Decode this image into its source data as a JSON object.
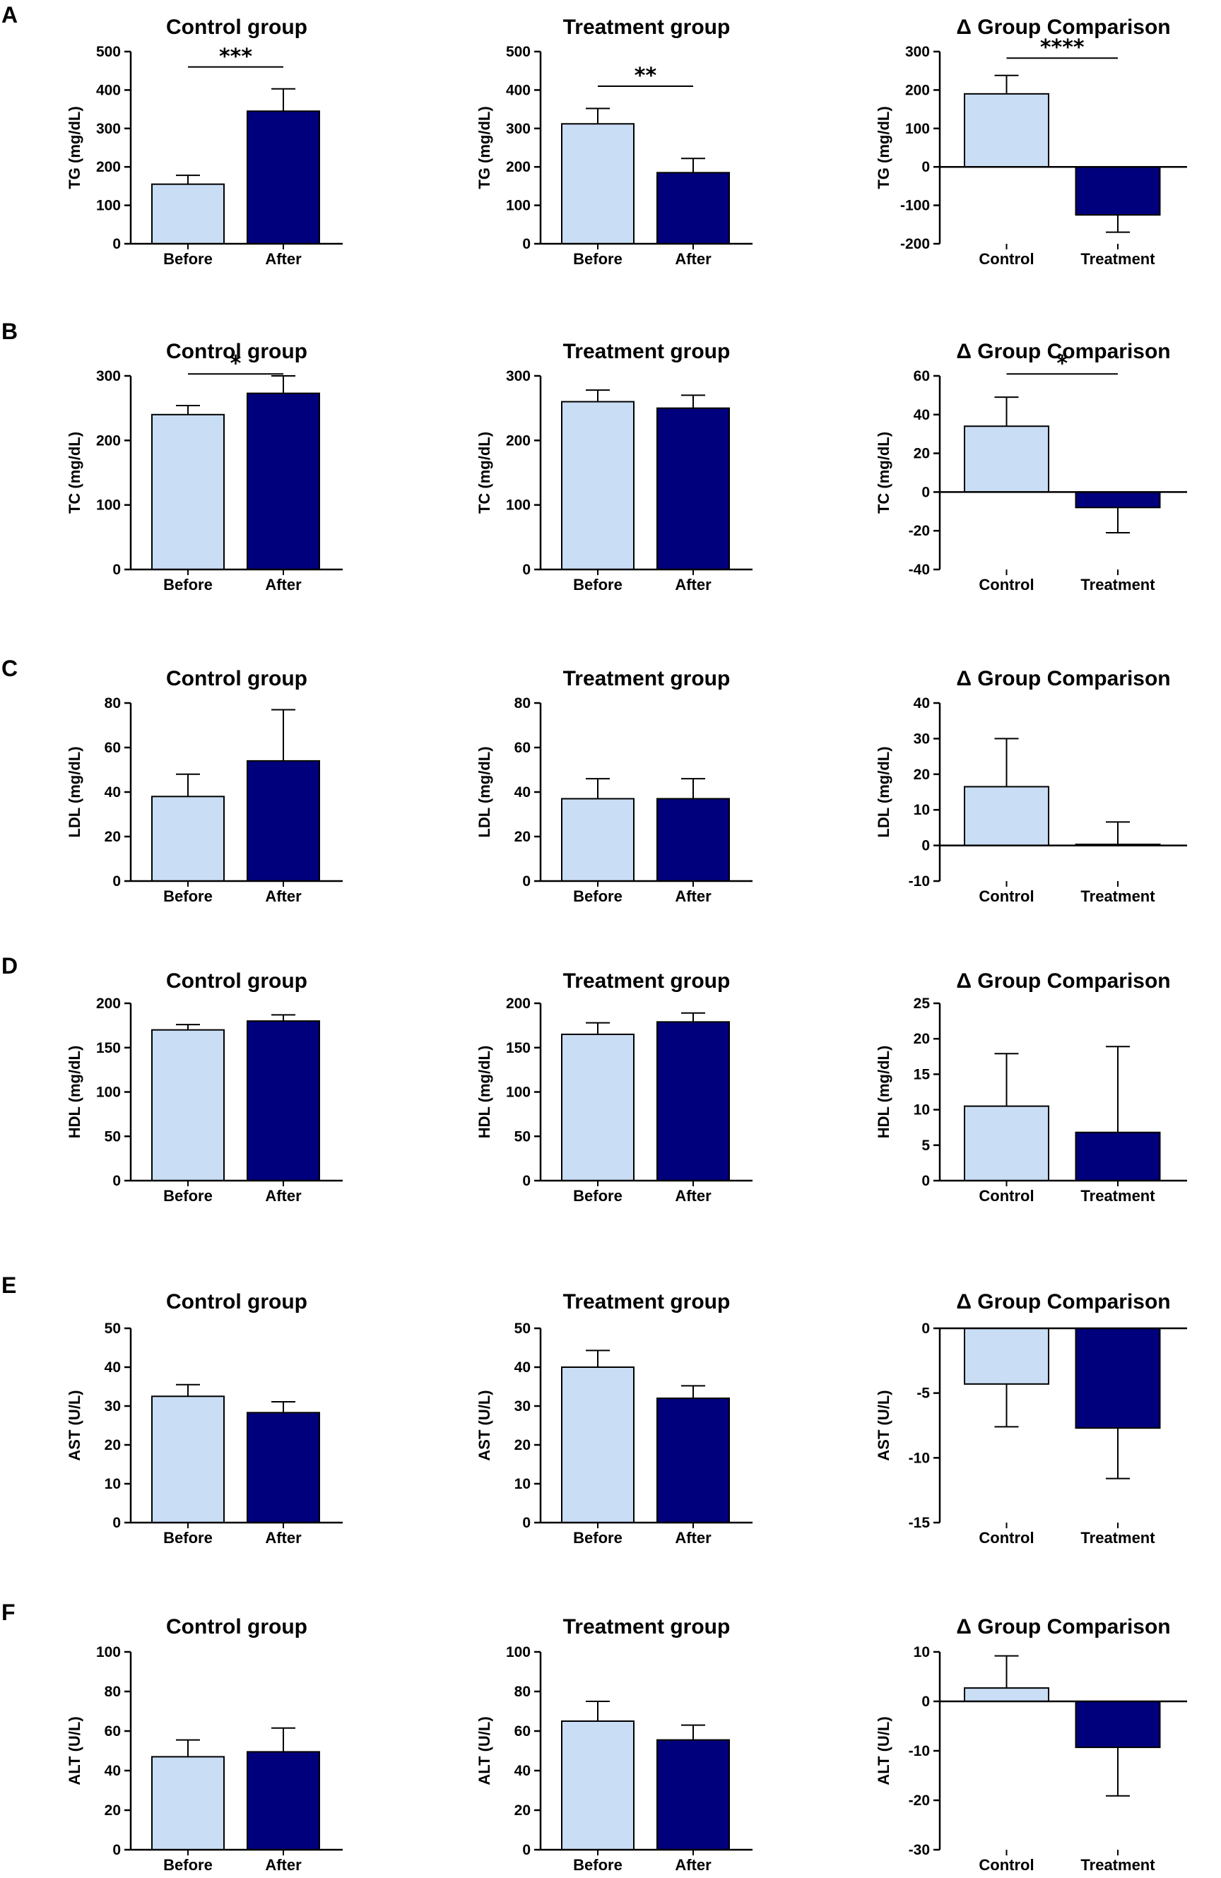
{
  "colors": {
    "before": "#c9ddf5",
    "after": "#00007c",
    "stroke": "#000000"
  },
  "chart_data": [
    {
      "row": "A",
      "type": "bar",
      "title": "Control group",
      "ylabel": "TG (mg/dL)",
      "categories": [
        "Before",
        "After"
      ],
      "values": [
        155,
        345
      ],
      "errors": [
        23,
        58
      ],
      "ylim": [
        0,
        500
      ],
      "ticks": [
        "0",
        "100",
        "200",
        "300",
        "400",
        "500"
      ],
      "significance": "***",
      "sig_from": 0,
      "sig_to": 1,
      "sig_at": 460
    },
    {
      "row": "A",
      "type": "bar",
      "title": "Treatment group",
      "ylabel": "TG (mg/dL)",
      "categories": [
        "Before",
        "After"
      ],
      "values": [
        312,
        185
      ],
      "errors": [
        40,
        37
      ],
      "ylim": [
        0,
        500
      ],
      "ticks": [
        "0",
        "100",
        "200",
        "300",
        "400",
        "500"
      ],
      "significance": "**",
      "sig_from": 0,
      "sig_to": 1,
      "sig_at": 410
    },
    {
      "row": "A",
      "type": "bar",
      "title": "Δ Group Comparison",
      "ylabel": "TG (mg/dL)",
      "categories": [
        "Control",
        "Treatment"
      ],
      "values": [
        190,
        -125
      ],
      "errors": [
        48,
        45
      ],
      "ylim": [
        -200,
        300
      ],
      "ticks": [
        "-200",
        "-100",
        "0",
        "100",
        "200",
        "300"
      ],
      "significance": "****",
      "sig_from": 0,
      "sig_to": 1,
      "sig_at": 283
    },
    {
      "row": "B",
      "type": "bar",
      "title": "Control group",
      "ylabel": "TC (mg/dL)",
      "categories": [
        "Before",
        "After"
      ],
      "values": [
        240,
        273
      ],
      "errors": [
        14,
        27
      ],
      "ylim": [
        0,
        300
      ],
      "ticks": [
        "0",
        "100",
        "200",
        "300"
      ],
      "significance": "*",
      "sig_from": 0,
      "sig_to": 1,
      "sig_at": 303
    },
    {
      "row": "B",
      "type": "bar",
      "title": "Treatment group",
      "ylabel": "TC (mg/dL)",
      "categories": [
        "Before",
        "After"
      ],
      "values": [
        260,
        250
      ],
      "errors": [
        18,
        20
      ],
      "ylim": [
        0,
        300
      ],
      "ticks": [
        "0",
        "100",
        "200",
        "300"
      ]
    },
    {
      "row": "B",
      "type": "bar",
      "title": "Δ Group Comparison",
      "ylabel": "TC (mg/dL)",
      "categories": [
        "Control",
        "Treatment"
      ],
      "values": [
        34,
        -8
      ],
      "errors": [
        15,
        13
      ],
      "ylim": [
        -40,
        60
      ],
      "ticks": [
        "-40",
        "-20",
        "0",
        "20",
        "40",
        "60"
      ],
      "significance": "*",
      "sig_from": 0,
      "sig_to": 1,
      "sig_at": 61
    },
    {
      "row": "C",
      "type": "bar",
      "title": "Control group",
      "ylabel": "LDL (mg/dL)",
      "categories": [
        "Before",
        "After"
      ],
      "values": [
        38,
        54
      ],
      "errors": [
        10,
        23
      ],
      "ylim": [
        0,
        80
      ],
      "ticks": [
        "0",
        "20",
        "40",
        "60",
        "80"
      ]
    },
    {
      "row": "C",
      "type": "bar",
      "title": "Treatment group",
      "ylabel": "LDL (mg/dL)",
      "categories": [
        "Before",
        "After"
      ],
      "values": [
        37,
        37
      ],
      "errors": [
        9,
        9
      ],
      "ylim": [
        0,
        80
      ],
      "ticks": [
        "0",
        "20",
        "40",
        "60",
        "80"
      ]
    },
    {
      "row": "C",
      "type": "bar",
      "title": "Δ Group Comparison",
      "ylabel": "LDL (mg/dL)",
      "categories": [
        "Control",
        "Treatment"
      ],
      "values": [
        16.5,
        0.3
      ],
      "errors": [
        13.5,
        6.3
      ],
      "ylim": [
        -10,
        40
      ],
      "ticks": [
        "-10",
        "0",
        "10",
        "20",
        "30",
        "40"
      ]
    },
    {
      "row": "D",
      "type": "bar",
      "title": "Control group",
      "ylabel": "HDL (mg/dL)",
      "categories": [
        "Before",
        "After"
      ],
      "values": [
        170,
        180
      ],
      "errors": [
        6,
        7
      ],
      "ylim": [
        0,
        200
      ],
      "ticks": [
        "0",
        "50",
        "100",
        "150",
        "200"
      ]
    },
    {
      "row": "D",
      "type": "bar",
      "title": "Treatment group",
      "ylabel": "HDL (mg/dL)",
      "categories": [
        "Before",
        "After"
      ],
      "values": [
        165,
        179
      ],
      "errors": [
        13,
        10
      ],
      "ylim": [
        0,
        200
      ],
      "ticks": [
        "0",
        "50",
        "100",
        "150",
        "200"
      ]
    },
    {
      "row": "D",
      "type": "bar",
      "title": "Δ Group Comparison",
      "ylabel": "HDL (mg/dL)",
      "categories": [
        "Control",
        "Treatment"
      ],
      "values": [
        10.5,
        6.8
      ],
      "errors": [
        7.4,
        12.1
      ],
      "ylim": [
        0,
        25
      ],
      "ticks": [
        "0",
        "5",
        "10",
        "15",
        "20",
        "25"
      ]
    },
    {
      "row": "E",
      "type": "bar",
      "title": "Control group",
      "ylabel": "AST (U/L)",
      "categories": [
        "Before",
        "After"
      ],
      "values": [
        32.5,
        28.3
      ],
      "errors": [
        3,
        2.8
      ],
      "ylim": [
        0,
        50
      ],
      "ticks": [
        "0",
        "10",
        "20",
        "30",
        "40",
        "50"
      ]
    },
    {
      "row": "E",
      "type": "bar",
      "title": "Treatment group",
      "ylabel": "AST (U/L)",
      "categories": [
        "Before",
        "After"
      ],
      "values": [
        40,
        32
      ],
      "errors": [
        4.3,
        3.2
      ],
      "ylim": [
        0,
        50
      ],
      "ticks": [
        "0",
        "10",
        "20",
        "30",
        "40",
        "50"
      ]
    },
    {
      "row": "E",
      "type": "bar",
      "title": "Δ Group Comparison",
      "ylabel": "AST (U/L)",
      "categories": [
        "Control",
        "Treatment"
      ],
      "values": [
        -4.3,
        -7.7
      ],
      "errors": [
        3.3,
        3.9
      ],
      "ylim": [
        -15,
        0
      ],
      "ticks": [
        "-15",
        "-10",
        "-5",
        "0"
      ]
    },
    {
      "row": "F",
      "type": "bar",
      "title": "Control group",
      "ylabel": "ALT (U/L)",
      "categories": [
        "Before",
        "After"
      ],
      "values": [
        47,
        49.5
      ],
      "errors": [
        8.5,
        12
      ],
      "ylim": [
        0,
        100
      ],
      "ticks": [
        "0",
        "20",
        "40",
        "60",
        "80",
        "100"
      ]
    },
    {
      "row": "F",
      "type": "bar",
      "title": "Treatment group",
      "ylabel": "ALT (U/L)",
      "categories": [
        "Before",
        "After"
      ],
      "values": [
        65,
        55.5
      ],
      "errors": [
        10,
        7.5
      ],
      "ylim": [
        0,
        100
      ],
      "ticks": [
        "0",
        "20",
        "40",
        "60",
        "80",
        "100"
      ]
    },
    {
      "row": "F",
      "type": "bar",
      "title": "Δ Group Comparison",
      "ylabel": "ALT (U/L)",
      "categories": [
        "Control",
        "Treatment"
      ],
      "values": [
        2.7,
        -9.3
      ],
      "errors": [
        6.5,
        9.8
      ],
      "ylim": [
        -30,
        10
      ],
      "ticks": [
        "-30",
        "-20",
        "-10",
        "0",
        "10"
      ]
    }
  ]
}
